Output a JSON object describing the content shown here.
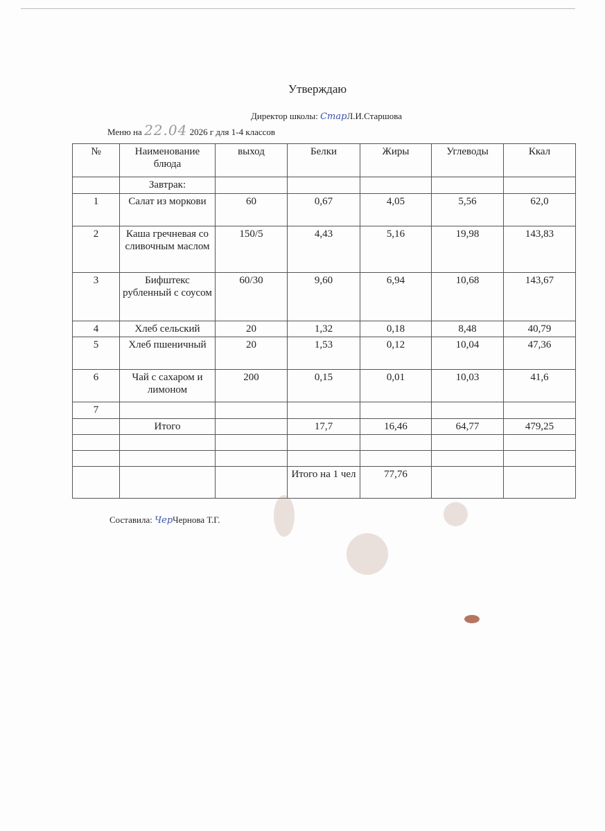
{
  "header": {
    "approve": "Утверждаю",
    "director_label": "Директор школы:",
    "director_signature": "Стар",
    "director_name": "Л.И.Старшова",
    "menu_prefix": "Меню на",
    "menu_date": "22.04",
    "menu_suffix": "2026 г для 1-4 классов"
  },
  "table": {
    "headers": [
      "№",
      "Наименование блюда",
      "выход",
      "Белки",
      "Жиры",
      "Углеводы",
      "Ккал"
    ],
    "section": "Завтрак:",
    "rows": [
      [
        "1",
        "Салат из моркови",
        "60",
        "0,67",
        "4,05",
        "5,56",
        "62,0"
      ],
      [
        "2",
        "Каша гречневая со сливочным маслом",
        "150/5",
        "4,43",
        "5,16",
        "19,98",
        "143,83"
      ],
      [
        "3",
        "Бифштекс рубленный с соусом",
        "60/30",
        "9,60",
        "6,94",
        "10,68",
        "143,67"
      ],
      [
        "4",
        "Хлеб сельский",
        "20",
        "1,32",
        "0,18",
        "8,48",
        "40,79"
      ],
      [
        "5",
        "Хлеб пшеничный",
        "20",
        "1,53",
        "0,12",
        "10,04",
        "47,36"
      ],
      [
        "6",
        "Чай с сахаром и лимоном",
        "200",
        "0,15",
        "0,01",
        "10,03",
        "41,6"
      ],
      [
        "7",
        "",
        "",
        "",
        "",
        "",
        ""
      ]
    ],
    "total": [
      "",
      "Итого",
      "",
      "17,7",
      "16,46",
      "64,77",
      "479,25"
    ],
    "per_person_label": "Итого на 1 чел",
    "per_person_value": "77,76"
  },
  "footer": {
    "composed_label": "Составила:",
    "signature": "Чер",
    "composed_name": "Чернова Т.Г."
  }
}
